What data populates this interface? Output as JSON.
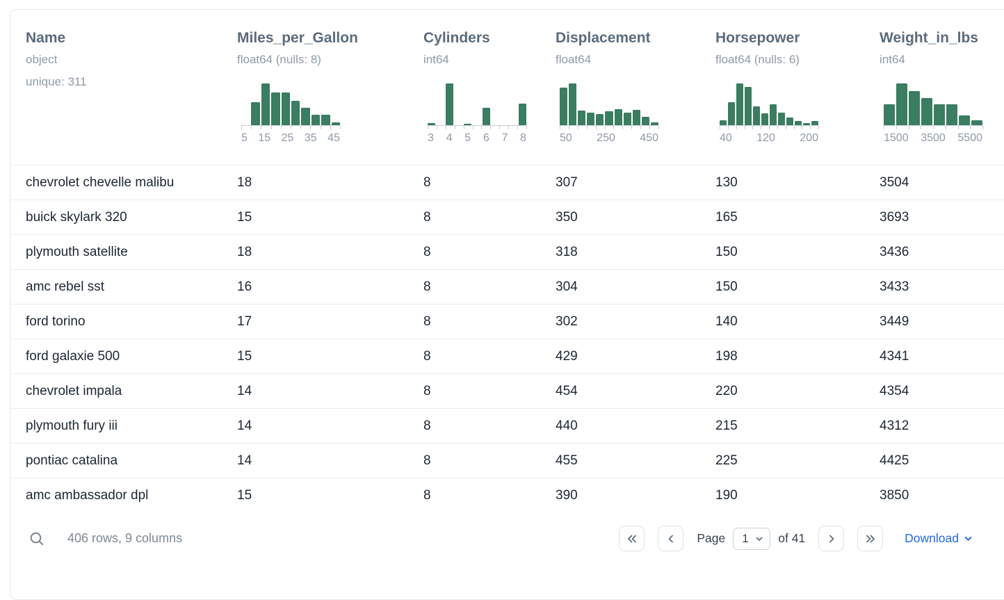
{
  "table": {
    "columns": [
      {
        "name": "Name",
        "type": "object",
        "extra": "unique: 311"
      },
      {
        "name": "Miles_per_Gallon",
        "type": "float64 (nulls: 8)",
        "histogram": {
          "bins": [
            0,
            0.55,
            1,
            0.78,
            0.78,
            0.58,
            0.42,
            0.25,
            0.25,
            0.07
          ],
          "tick_labels": [
            "5",
            "15",
            "25",
            "35",
            "45"
          ]
        }
      },
      {
        "name": "Cylinders",
        "type": "int64",
        "histogram": {
          "bins": [
            0.05,
            0,
            1,
            0,
            0.04,
            0,
            0.42,
            0,
            0,
            0,
            0.52
          ],
          "tick_labels": [
            "3",
            "4",
            "5",
            "6",
            "7",
            "8"
          ]
        }
      },
      {
        "name": "Displacement",
        "type": "float64",
        "histogram": {
          "bins": [
            0.9,
            1,
            0.35,
            0.3,
            0.27,
            0.33,
            0.38,
            0.3,
            0.37,
            0.2,
            0.06
          ],
          "tick_labels": [
            "50",
            "250",
            "450"
          ]
        }
      },
      {
        "name": "Horsepower",
        "type": "float64 (nulls: 6)",
        "histogram": {
          "bins": [
            0.12,
            0.55,
            1,
            0.92,
            0.45,
            0.28,
            0.5,
            0.3,
            0.18,
            0.1,
            0.05,
            0.1
          ],
          "tick_labels": [
            "40",
            "120",
            "200"
          ]
        }
      },
      {
        "name": "Weight_in_lbs",
        "type": "int64",
        "histogram": {
          "bins": [
            0.5,
            1,
            0.82,
            0.65,
            0.5,
            0.5,
            0.24,
            0.12
          ],
          "tick_labels": [
            "1500",
            "3500",
            "5500"
          ]
        }
      }
    ],
    "rows": [
      [
        "chevrolet chevelle malibu",
        "18",
        "8",
        "307",
        "130",
        "3504"
      ],
      [
        "buick skylark 320",
        "15",
        "8",
        "350",
        "165",
        "3693"
      ],
      [
        "plymouth satellite",
        "18",
        "8",
        "318",
        "150",
        "3436"
      ],
      [
        "amc rebel sst",
        "16",
        "8",
        "304",
        "150",
        "3433"
      ],
      [
        "ford torino",
        "17",
        "8",
        "302",
        "140",
        "3449"
      ],
      [
        "ford galaxie 500",
        "15",
        "8",
        "429",
        "198",
        "4341"
      ],
      [
        "chevrolet impala",
        "14",
        "8",
        "454",
        "220",
        "4354"
      ],
      [
        "plymouth fury iii",
        "14",
        "8",
        "440",
        "215",
        "4312"
      ],
      [
        "pontiac catalina",
        "14",
        "8",
        "455",
        "225",
        "4425"
      ],
      [
        "amc ambassador dpl",
        "15",
        "8",
        "390",
        "190",
        "3850"
      ]
    ]
  },
  "footer": {
    "summary": "406 rows, 9 columns",
    "page_label": "Page",
    "page_value": "1",
    "of_label": "of 41",
    "download_label": "Download"
  },
  "icons": {
    "search": "magnifier",
    "first_page": "chevrons-left",
    "prev_page": "chevron-left",
    "next_page": "chevron-right",
    "last_page": "chevrons-right",
    "page_select_caret": "chevron-down",
    "download_caret": "chevron-down"
  },
  "colors": {
    "histogram_green": "#3a7d61",
    "link_blue": "#2369e6"
  }
}
